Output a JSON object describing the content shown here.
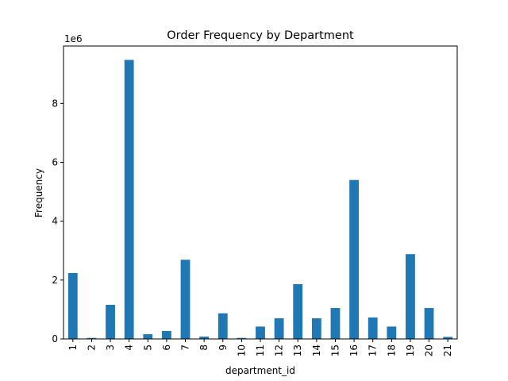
{
  "chart_data": {
    "type": "bar",
    "title": "Order Frequency by Department",
    "xlabel": "department_id",
    "ylabel": "Frequency",
    "y_offset_label": "1e6",
    "y_scale": 1000000,
    "categories": [
      "1",
      "2",
      "3",
      "4",
      "5",
      "6",
      "7",
      "8",
      "9",
      "10",
      "11",
      "12",
      "13",
      "14",
      "15",
      "16",
      "17",
      "18",
      "19",
      "20",
      "21"
    ],
    "values": [
      2240000,
      35000,
      1160000,
      9480000,
      160000,
      270000,
      2690000,
      80000,
      870000,
      35000,
      420000,
      700000,
      1860000,
      700000,
      1050000,
      5400000,
      730000,
      420000,
      2880000,
      1050000,
      70000
    ],
    "ylim": [
      0,
      9950000
    ],
    "yticks": [
      0,
      2000000,
      4000000,
      6000000,
      8000000
    ],
    "ytick_labels": [
      "0",
      "2",
      "4",
      "6",
      "8"
    ],
    "bar_color": "#1f77b4",
    "grid": false,
    "legend": "none"
  }
}
